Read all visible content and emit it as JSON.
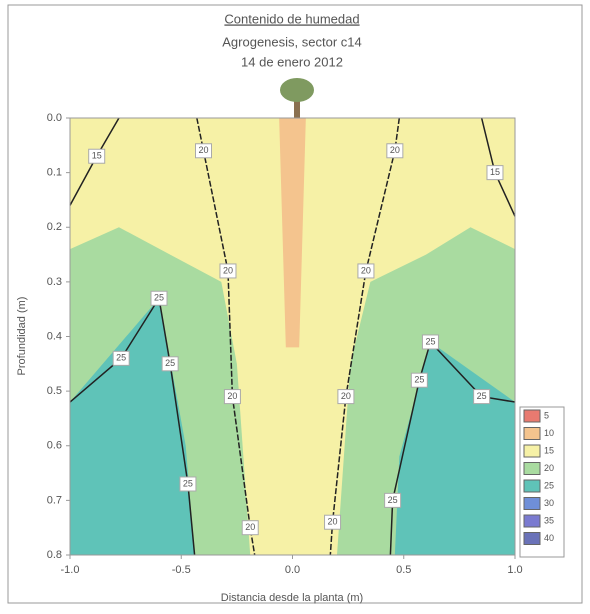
{
  "chart_data": {
    "type": "contour",
    "title": "Contenido de humedad",
    "subtitle": "Agrogenesis, sector c14",
    "date": "14 de enero 2012",
    "xlabel": "Distancia desde la planta (m)",
    "ylabel": "Profundidad (m)",
    "xlim": [
      -1,
      1
    ],
    "xticks": [
      {
        "value": -1,
        "label": "-1.0"
      },
      -0.5,
      {
        "value": 0,
        "label": "0.0"
      },
      0.5,
      {
        "value": 1,
        "label": "1.0"
      }
    ],
    "ylim": [
      0.8,
      0
    ],
    "yticks": [
      {
        "value": 0,
        "label": "0.0"
      },
      0.1,
      0.2,
      0.3,
      0.4,
      0.5,
      0.6,
      0.7,
      0.8
    ],
    "legend": {
      "levels": [
        5,
        10,
        15,
        20,
        25,
        30,
        35,
        40
      ],
      "colors": [
        "#e87a70",
        "#f4c48e",
        "#f6f1a6",
        "#a9dba0",
        "#5fc3b8",
        "#6f8fd8",
        "#7a7ad0",
        "#6a72b8"
      ]
    },
    "fills": [
      {
        "level": 15,
        "x": [
          -1,
          1,
          1,
          -1
        ],
        "y": [
          0,
          0,
          0.8,
          0.8
        ]
      },
      {
        "level": 10,
        "x": [
          -0.06,
          0.06,
          0.03,
          -0.03
        ],
        "y": [
          0,
          0,
          0.42,
          0.42
        ]
      },
      {
        "level": 20,
        "x": [
          -1,
          -0.78,
          -0.55,
          -0.32,
          -0.25,
          -0.19,
          -1
        ],
        "y": [
          0.24,
          0.2,
          0.25,
          0.3,
          0.45,
          0.8,
          0.8
        ]
      },
      {
        "level": 20,
        "x": [
          1,
          0.8,
          0.6,
          0.35,
          0.26,
          0.2,
          1
        ],
        "y": [
          0.24,
          0.2,
          0.25,
          0.3,
          0.45,
          0.8,
          0.8
        ]
      },
      {
        "level": 25,
        "x": [
          -1,
          -0.6,
          -0.48,
          -0.44,
          -1
        ],
        "y": [
          0.52,
          0.33,
          0.6,
          0.8,
          0.8
        ]
      },
      {
        "level": 25,
        "x": [
          1,
          0.62,
          0.48,
          0.46,
          1
        ],
        "y": [
          0.52,
          0.41,
          0.62,
          0.8,
          0.8
        ]
      }
    ],
    "contours": [
      {
        "level": 15,
        "x": [
          -1,
          -0.88,
          -0.78
        ],
        "y": [
          0.16,
          0.07,
          0
        ]
      },
      {
        "level": 20,
        "x": [
          -0.43,
          -0.4,
          -0.29,
          -0.27,
          -0.19,
          -0.17
        ],
        "y": [
          0,
          0.06,
          0.28,
          0.51,
          0.75,
          0.8
        ]
      },
      {
        "level": 20,
        "x": [
          0.48,
          0.46,
          0.33,
          0.24,
          0.18,
          0.17
        ],
        "y": [
          0,
          0.06,
          0.28,
          0.51,
          0.74,
          0.8
        ]
      },
      {
        "level": 25,
        "x": [
          -1,
          -0.77,
          -0.6,
          -0.55,
          -0.47,
          -0.44
        ],
        "y": [
          0.52,
          0.44,
          0.33,
          0.45,
          0.67,
          0.8
        ]
      },
      {
        "level": 25,
        "x": [
          1,
          0.85,
          0.62,
          0.57,
          0.45,
          0.44
        ],
        "y": [
          0.52,
          0.51,
          0.41,
          0.48,
          0.7,
          0.8
        ]
      },
      {
        "level": 15,
        "x": [
          0.85,
          0.91,
          1
        ],
        "y": [
          0,
          0.1,
          0.18
        ]
      }
    ]
  }
}
